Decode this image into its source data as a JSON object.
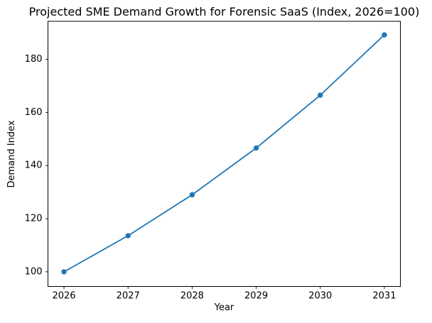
{
  "chart_data": {
    "type": "line",
    "title": "Projected SME Demand Growth for Forensic SaaS (Index, 2026=100)",
    "xlabel": "Year",
    "ylabel": "Demand Index",
    "x": [
      2026,
      2027,
      2028,
      2029,
      2030,
      2031
    ],
    "series": [
      {
        "name": "Demand Index",
        "values": [
          100,
          113.6,
          129.0,
          146.6,
          166.5,
          189.2
        ]
      }
    ],
    "xticks": [
      "2026",
      "2027",
      "2028",
      "2029",
      "2030",
      "2031"
    ],
    "yticks": [
      "100",
      "120",
      "140",
      "160",
      "180"
    ],
    "xlim": [
      2025.75,
      2031.25
    ],
    "ylim": [
      94.5,
      194.3
    ],
    "grid": false,
    "legend_position": "none",
    "line_color": "#1f77b4",
    "marker": "o",
    "background_color": "#ffffff",
    "text_color": "#000000"
  }
}
